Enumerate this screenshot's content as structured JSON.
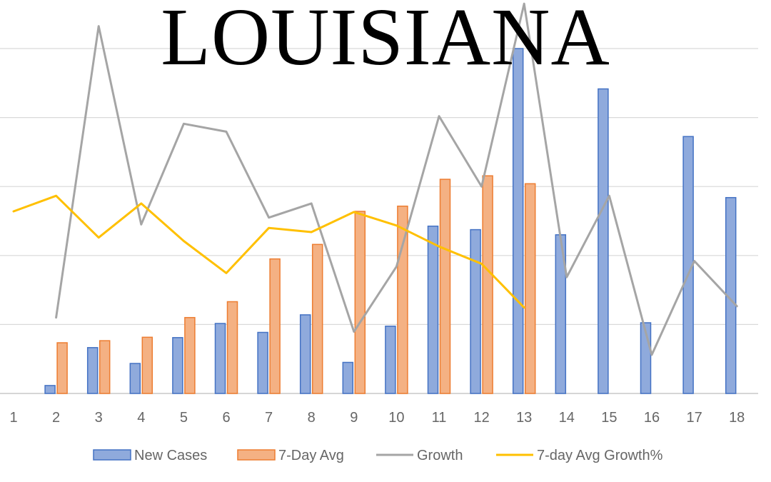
{
  "chart_data": {
    "type": "bar",
    "title": "LOUISIANA",
    "categories": [
      "1",
      "2",
      "3",
      "4",
      "5",
      "6",
      "7",
      "8",
      "9",
      "10",
      "11",
      "12",
      "13",
      "14",
      "15",
      "16",
      "17",
      "18"
    ],
    "ylim": [
      0,
      100
    ],
    "grid": true,
    "legend_position": "bottom",
    "y_axis_labels_visible": false,
    "series": [
      {
        "name": "New Cases",
        "kind": "bar",
        "color": "#8FAADC",
        "stroke": "#4472C4",
        "values": [
          0,
          2.3,
          13.3,
          8.7,
          16.2,
          20.3,
          17.7,
          22.8,
          9.0,
          19.5,
          48.5,
          47.5,
          100,
          46.0,
          88.3,
          20.5,
          74.5,
          56.8
        ]
      },
      {
        "name": "7-Day Avg",
        "kind": "bar",
        "color": "#F4B183",
        "stroke": "#ED7D31",
        "values": [
          null,
          14.7,
          15.3,
          16.3,
          22.0,
          26.6,
          39.0,
          43.2,
          52.8,
          54.3,
          62.1,
          63.1,
          60.8,
          null,
          null,
          null,
          null,
          null
        ]
      },
      {
        "name": "Growth",
        "kind": "line",
        "color": "#A5A5A5",
        "values": [
          null,
          22.0,
          106.5,
          49.0,
          78.2,
          75.9,
          51.0,
          55.1,
          17.9,
          36.8,
          80.4,
          60.0,
          113.0,
          33.7,
          57.3,
          11.2,
          38.4,
          25.3
        ]
      },
      {
        "name": "7-day Avg Growth%",
        "kind": "line",
        "color": "#FFC000",
        "values": [
          52.8,
          57.3,
          45.2,
          55.1,
          44.2,
          34.9,
          48.0,
          46.8,
          52.6,
          48.7,
          42.6,
          37.6,
          24.9,
          null,
          null,
          null,
          null,
          null
        ]
      }
    ]
  }
}
